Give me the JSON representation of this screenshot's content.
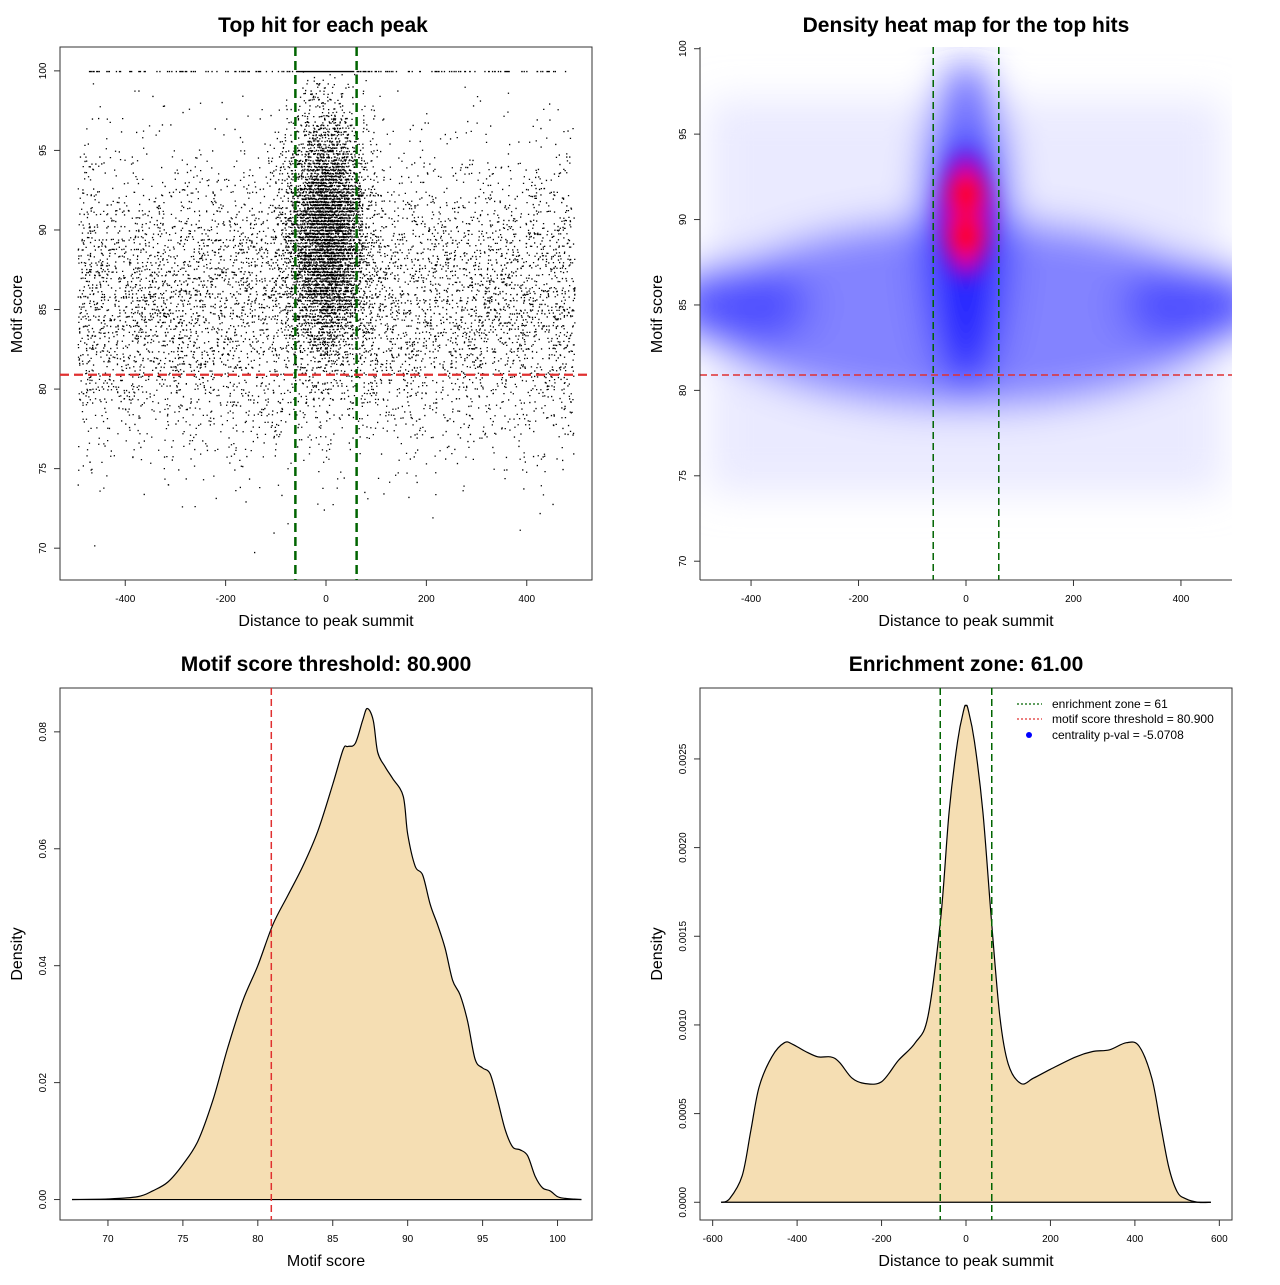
{
  "colors": {
    "green_line": "#006400",
    "red_line": "#e03030",
    "fill": "#f5deb3",
    "heat_low": "#ffffff",
    "heat_mid": "#0000ff",
    "heat_high": "#ff0000"
  },
  "chart_data": [
    {
      "id": "scatter",
      "type": "scatter",
      "title": "Top hit for each peak",
      "xlabel": "Distance to peak summit",
      "ylabel": "Motif score",
      "xlim": [
        -530,
        530
      ],
      "ylim": [
        68,
        101.5
      ],
      "xticks": [
        "-400",
        "-200",
        "0",
        "200",
        "400"
      ],
      "xtick_values": [
        -400,
        -200,
        0,
        200,
        400
      ],
      "yticks": [
        "70",
        "75",
        "80",
        "85",
        "90",
        "95",
        "100"
      ],
      "ytick_values": [
        70,
        75,
        80,
        85,
        90,
        95,
        100
      ],
      "vlines": [
        -61,
        61
      ],
      "hline": 80.9,
      "point_note": "thousands of individual motif hits, x in [-500,500], dense band at 80-95, concentrated near x=0"
    },
    {
      "id": "heatmap",
      "type": "heatmap",
      "title": "Density heat map for the top hits",
      "xlabel": "Distance to peak summit",
      "ylabel": "Motif score",
      "xlim": [
        -495,
        495
      ],
      "ylim": [
        68.9,
        100.1
      ],
      "xticks": [
        "-400",
        "-200",
        "0",
        "200",
        "400"
      ],
      "xtick_values": [
        -400,
        -200,
        0,
        200,
        400
      ],
      "yticks": [
        "70",
        "75",
        "80",
        "85",
        "90",
        "95",
        "100"
      ],
      "ytick_values": [
        70,
        75,
        80,
        85,
        90,
        95,
        100
      ],
      "vlines": [
        -61,
        61
      ],
      "hline": 80.9,
      "density_peaks": [
        {
          "x": 0,
          "y": 91.5,
          "level": "high"
        },
        {
          "x": 0,
          "y": 89,
          "level": "high"
        },
        {
          "x": -420,
          "y": 85,
          "level": "mid"
        },
        {
          "x": 420,
          "y": 85,
          "level": "mid"
        }
      ]
    },
    {
      "id": "score_density",
      "type": "area",
      "title": "Motif score threshold: 80.900",
      "xlabel": "Motif score",
      "ylabel": "Density",
      "xlim": [
        66.8,
        102.3
      ],
      "ylim": [
        -0.0035,
        0.0875
      ],
      "xticks": [
        "70",
        "75",
        "80",
        "85",
        "90",
        "95",
        "100"
      ],
      "xtick_values": [
        70,
        75,
        80,
        85,
        90,
        95,
        100
      ],
      "yticks": [
        "0.00",
        "0.02",
        "0.04",
        "0.06",
        "0.08"
      ],
      "ytick_values": [
        0,
        0.02,
        0.04,
        0.06,
        0.08
      ],
      "vline": 80.9,
      "x": [
        67.6,
        70,
        72,
        73,
        74,
        75,
        76,
        77,
        78,
        79,
        80,
        81,
        82,
        83,
        84,
        85,
        85.7,
        86,
        86.5,
        87,
        87.3,
        87.7,
        88,
        88.5,
        89,
        89.7,
        90,
        90.5,
        91,
        91.5,
        92,
        92.5,
        93,
        93.5,
        94,
        94.5,
        95,
        95.5,
        96,
        96.5,
        97,
        97.5,
        98,
        98.5,
        99,
        99.5,
        100,
        100.5,
        101,
        101.6
      ],
      "y": [
        0,
        0.0001,
        0.0005,
        0.0015,
        0.003,
        0.006,
        0.01,
        0.017,
        0.026,
        0.034,
        0.04,
        0.047,
        0.052,
        0.057,
        0.063,
        0.071,
        0.077,
        0.0775,
        0.078,
        0.082,
        0.084,
        0.082,
        0.0765,
        0.074,
        0.072,
        0.069,
        0.0625,
        0.057,
        0.0555,
        0.0505,
        0.047,
        0.043,
        0.0375,
        0.035,
        0.0305,
        0.024,
        0.0225,
        0.0215,
        0.017,
        0.012,
        0.009,
        0.0085,
        0.0075,
        0.004,
        0.002,
        0.0015,
        0.0005,
        0.0002,
        0.0001,
        0
      ]
    },
    {
      "id": "distance_density",
      "type": "area",
      "title": "Enrichment zone: 61.00",
      "xlabel": "Distance to peak summit",
      "ylabel": "Density",
      "xlim": [
        -630,
        630
      ],
      "ylim": [
        -0.0001,
        0.0029
      ],
      "xticks": [
        "-600",
        "-400",
        "-200",
        "0",
        "200",
        "400",
        "600"
      ],
      "xtick_values": [
        -600,
        -400,
        -200,
        0,
        200,
        400,
        600
      ],
      "yticks": [
        "0.0000",
        "0.0005",
        "0.0010",
        "0.0015",
        "0.0020",
        "0.0025"
      ],
      "ytick_values": [
        0,
        0.0005,
        0.001,
        0.0015,
        0.002,
        0.0025
      ],
      "vlines": [
        -61,
        61
      ],
      "x": [
        -580,
        -560,
        -530,
        -510,
        -490,
        -460,
        -430,
        -410,
        -380,
        -350,
        -320,
        -300,
        -270,
        -240,
        -200,
        -160,
        -120,
        -90,
        -60,
        -40,
        -20,
        -5,
        0,
        5,
        20,
        40,
        60,
        80,
        100,
        130,
        160,
        200,
        260,
        300,
        340,
        380,
        410,
        440,
        460,
        480,
        500,
        520,
        550,
        580
      ],
      "y": [
        0,
        2e-05,
        0.00015,
        0.0004,
        0.00065,
        0.00082,
        0.0009,
        0.00089,
        0.00085,
        0.00082,
        0.00082,
        0.00079,
        0.0007,
        0.00067,
        0.00068,
        0.0008,
        0.0009,
        0.00105,
        0.0016,
        0.0022,
        0.0026,
        0.00278,
        0.0028,
        0.00278,
        0.0026,
        0.0022,
        0.0016,
        0.00105,
        0.00078,
        0.00067,
        0.0007,
        0.00075,
        0.00082,
        0.00085,
        0.00086,
        0.0009,
        0.00088,
        0.0007,
        0.00045,
        0.0002,
        6e-05,
        2e-05,
        0,
        0
      ],
      "legend": {
        "position": "top-right",
        "entries": [
          {
            "label": "enrichment zone = 61",
            "kind": "dotted",
            "color": "#006400"
          },
          {
            "label": "motif score threshold = 80.900",
            "kind": "dotted",
            "color": "#e03030"
          },
          {
            "label": "centrality p-val = -5.0708",
            "kind": "dot",
            "color": "#0000ff"
          }
        ]
      }
    }
  ]
}
